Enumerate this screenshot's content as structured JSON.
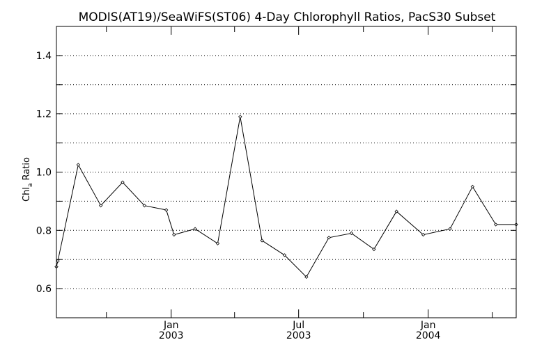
{
  "chart_data": {
    "type": "line",
    "title": "MODIS(AT19)/SeaWiFS(ST06) 4-Day Chlorophyll Ratios, PacS30 Subset",
    "ylabel_main": "Chl",
    "ylabel_sub": "a",
    "ylabel_tail": " Ratio",
    "ylim": [
      0.5,
      1.5
    ],
    "y_ticks": [
      "0.6",
      "0.8",
      "1.0",
      "1.2",
      "1.4"
    ],
    "x_ticks": [
      {
        "month": "Jan",
        "year": "2003"
      },
      {
        "month": "Jul",
        "year": "2003"
      },
      {
        "month": "Jan",
        "year": "2004"
      }
    ],
    "grid": true,
    "series": [
      {
        "x": [
          "2002-07-22",
          "2002-07-24",
          "2002-08-22",
          "2002-09-23",
          "2002-10-24",
          "2002-11-24",
          "2002-12-25",
          "2003-01-05",
          "2003-02-04",
          "2003-03-08",
          "2003-04-09",
          "2003-05-10",
          "2003-06-11",
          "2003-07-12",
          "2003-08-13",
          "2003-09-14",
          "2003-10-16",
          "2003-11-17",
          "2003-12-25",
          "2004-02-01",
          "2004-03-04",
          "2004-04-06",
          "2004-05-05"
        ],
        "values": [
          0.675,
          0.695,
          1.025,
          0.885,
          0.965,
          0.885,
          0.87,
          0.785,
          0.805,
          0.755,
          1.19,
          0.765,
          0.715,
          0.64,
          0.775,
          0.79,
          0.735,
          0.865,
          0.785,
          0.805,
          0.95,
          0.82,
          0.82
        ]
      }
    ]
  }
}
